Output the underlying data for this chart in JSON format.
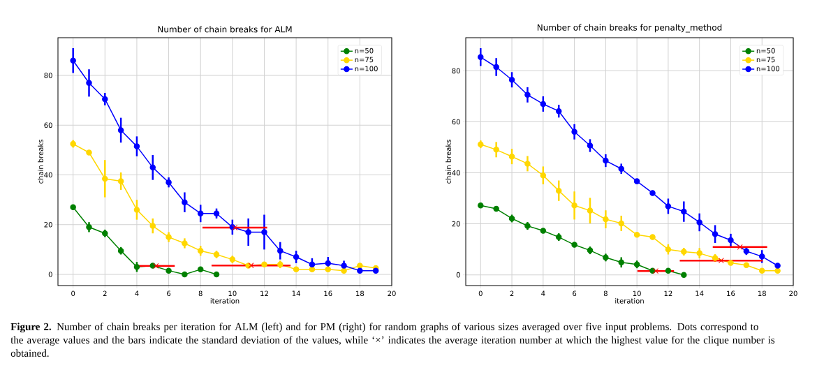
{
  "chart_data": [
    {
      "type": "line",
      "title": "Number of chain breaks for ALM",
      "xlabel": "iteration",
      "ylabel": "chain breaks",
      "xlim": [
        -0.95,
        20
      ],
      "ylim": [
        -4.5,
        95.2
      ],
      "xticks": [
        0,
        2,
        4,
        6,
        8,
        10,
        12,
        14,
        16,
        18,
        20
      ],
      "yticks": [
        0,
        20,
        40,
        60,
        80
      ],
      "grid": true,
      "legend": "top right",
      "marker": "circle",
      "line_style": "solid",
      "series": [
        {
          "name": "n=50",
          "color": "#008000",
          "x": [
            0,
            1,
            2,
            3,
            4,
            5,
            6,
            7,
            8,
            9
          ],
          "values": [
            27,
            19,
            16.5,
            9.5,
            3,
            3.5,
            1.5,
            0,
            2,
            0
          ],
          "errors": [
            1,
            2,
            1.5,
            1.5,
            2,
            1,
            0.5,
            0.5,
            0.5,
            0.5
          ]
        },
        {
          "name": "n=75",
          "color": "#ffd700",
          "x": [
            0,
            1,
            2,
            3,
            4,
            5,
            6,
            7,
            8,
            9,
            10,
            11,
            12,
            13,
            14,
            15,
            16,
            17,
            18,
            19
          ],
          "values": [
            52.5,
            49,
            38.5,
            37.5,
            26,
            19.5,
            15,
            12.5,
            9.5,
            8,
            6,
            3.5,
            4,
            4,
            2,
            2,
            2,
            1.5,
            3.5,
            2.5
          ],
          "errors": [
            1.5,
            1,
            7.5,
            3.5,
            4,
            3,
            2,
            2,
            2,
            1.5,
            1.5,
            0.5,
            1,
            1.5,
            0.5,
            0.5,
            0.5,
            1,
            1,
            0.5
          ]
        },
        {
          "name": "n=100",
          "color": "#0000ff",
          "x": [
            0,
            1,
            2,
            3,
            4,
            5,
            6,
            7,
            8,
            9,
            10,
            11,
            12,
            13,
            14,
            15,
            16,
            17,
            18,
            19
          ],
          "values": [
            86,
            77,
            70.5,
            58,
            51.5,
            43,
            37,
            29,
            24.5,
            24.5,
            19,
            17,
            17,
            9.5,
            7,
            4,
            4.5,
            3.5,
            1.5,
            1.5
          ],
          "errors": [
            5,
            5.5,
            2.5,
            5,
            4,
            5,
            2,
            4,
            3.5,
            2,
            3,
            5.5,
            7,
            3.5,
            2.5,
            2.5,
            2.5,
            2,
            0.5,
            0.5
          ]
        },
        {
          "type": "scatter",
          "marker": "cross",
          "color": "#ff0000",
          "x": [
            5.2,
            10.15,
            11.17
          ],
          "values": [
            3.4,
            18.8,
            3.6
          ],
          "xerrors": [
            1.18,
            2.03,
            2.48
          ]
        }
      ],
      "annotations": [
        "**Figure 2.** Number of chain breaks per iteration for ALM (left) and for PM (right) for random graphs of various sizes averaged over five input problems. Dots correspond to the average values and the bars indicate the standard deviation of the values, while ‘×’ indicates the average iteration number at which the highest value for the clique number is obtained."
      ]
    },
    {
      "type": "line",
      "title": "Number of chain breaks for penalty_method",
      "xlabel": "iteration",
      "ylabel": "chain breaks",
      "xlim": [
        -0.95,
        20
      ],
      "ylim": [
        -4.2,
        93
      ],
      "xticks": [
        0,
        2,
        4,
        6,
        8,
        10,
        12,
        14,
        16,
        18,
        20
      ],
      "yticks": [
        0,
        20,
        40,
        60,
        80
      ],
      "grid": true,
      "legend": "top right",
      "marker": "circle",
      "line_style": "solid",
      "series": [
        {
          "name": "n=50",
          "color": "#008000",
          "x": [
            0,
            1,
            2,
            3,
            4,
            5,
            6,
            7,
            8,
            9,
            10,
            11,
            12,
            13
          ],
          "values": [
            27.2,
            25.9,
            22.1,
            19.2,
            17.3,
            14.8,
            11.8,
            9.6,
            6.8,
            4.9,
            4.1,
            1.6,
            1.6,
            0
          ],
          "errors": [
            1,
            1,
            1.5,
            1.5,
            1,
            1.5,
            1,
            1.5,
            1.5,
            2,
            1.5,
            0.5,
            0.5,
            0.5
          ]
        },
        {
          "name": "n=75",
          "color": "#ffd700",
          "x": [
            0,
            1,
            2,
            3,
            4,
            5,
            6,
            7,
            8,
            9,
            10,
            11,
            12,
            13,
            14,
            15,
            16,
            17,
            18,
            19
          ],
          "values": [
            51.2,
            49.1,
            46.4,
            43.6,
            39,
            33,
            27.2,
            25.2,
            21.8,
            20.2,
            15.7,
            14.8,
            10,
            9.1,
            8.5,
            6.6,
            4.7,
            3.8,
            1.6,
            1.6
          ],
          "errors": [
            1.5,
            3,
            3,
            3,
            3.5,
            4,
            5.5,
            5,
            3.5,
            3,
            1,
            1,
            2,
            1.5,
            2,
            1.5,
            1,
            1,
            0.5,
            1
          ]
        },
        {
          "name": "n=100",
          "color": "#0000ff",
          "x": [
            0,
            1,
            2,
            3,
            4,
            5,
            6,
            7,
            8,
            9,
            10,
            11,
            12,
            13,
            14,
            15,
            16,
            17,
            18,
            19
          ],
          "values": [
            85.4,
            81.5,
            76.5,
            70.6,
            67,
            64.2,
            56.1,
            50.7,
            44.8,
            41.6,
            36.7,
            32.1,
            26.9,
            24.8,
            20.6,
            16,
            13.6,
            9.3,
            7.2,
            3.6
          ],
          "errors": [
            3.5,
            3.5,
            3,
            3,
            3,
            2.5,
            3,
            2.5,
            2.5,
            2,
            1,
            1,
            3,
            4,
            3.5,
            3.5,
            2.5,
            1.5,
            2.5,
            0.5
          ]
        },
        {
          "type": "scatter",
          "marker": "cross",
          "color": "#ff0000",
          "x": [
            11.2,
            15.39,
            16.59
          ],
          "values": [
            1.5,
            5.6,
            10.9
          ],
          "xerrors": [
            1.17,
            2.65,
            1.74
          ]
        }
      ]
    }
  ]
}
